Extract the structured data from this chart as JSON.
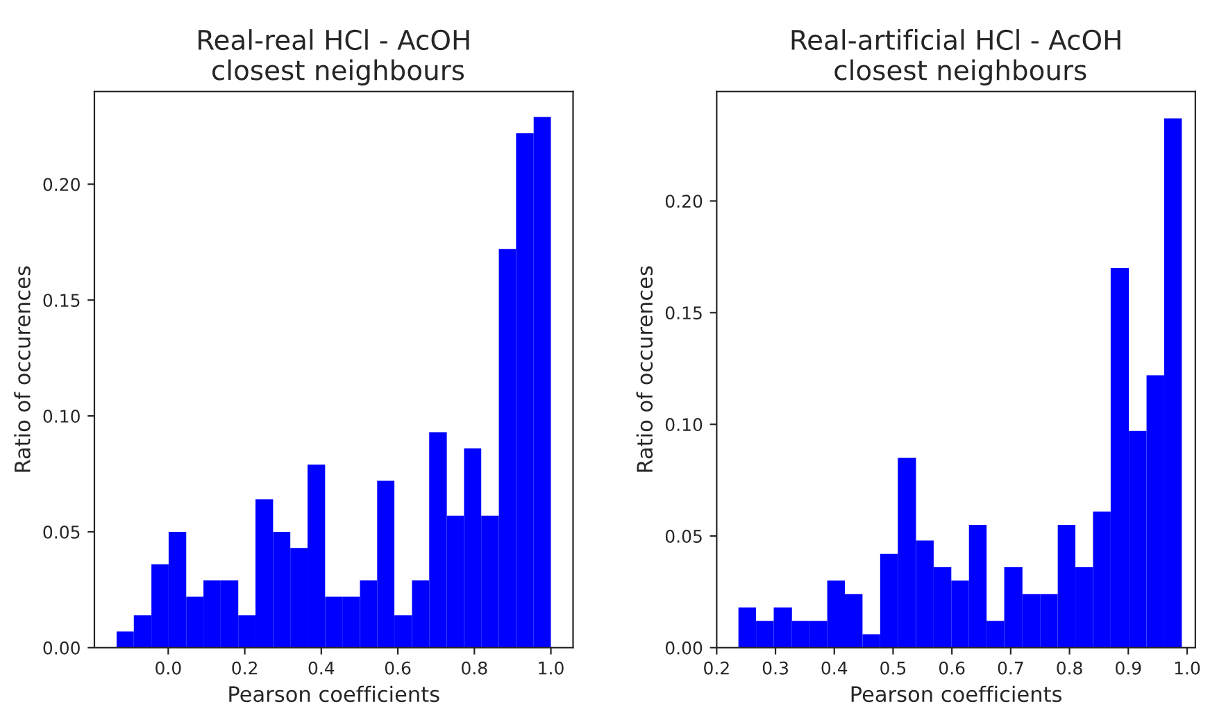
{
  "chart_data": [
    {
      "type": "histogram",
      "title": "Real-real HCl - AcOH\n closest neighbours",
      "xlabel": "Pearson coefficients",
      "ylabel": "Ratio of occurences",
      "color": "#0000ff",
      "bins": [
        -0.135,
        -0.09,
        -0.044,
        0.001,
        0.047,
        0.092,
        0.137,
        0.183,
        0.228,
        0.274,
        0.319,
        0.364,
        0.41,
        0.455,
        0.501,
        0.546,
        0.591,
        0.637,
        0.682,
        0.728,
        0.773,
        0.818,
        0.864,
        0.909,
        0.955,
        1.0
      ],
      "values": [
        0.007,
        0.014,
        0.036,
        0.05,
        0.022,
        0.029,
        0.029,
        0.014,
        0.064,
        0.05,
        0.043,
        0.079,
        0.022,
        0.022,
        0.029,
        0.072,
        0.014,
        0.029,
        0.093,
        0.057,
        0.086,
        0.057,
        0.172,
        0.222,
        0.229
      ],
      "xlim": [
        -0.193,
        1.058
      ],
      "ylim": [
        0,
        0.24
      ],
      "xticks": [
        {
          "value": 0,
          "label": "0.0"
        },
        {
          "value": 0.2,
          "label": "0.2"
        },
        {
          "value": 0.4,
          "label": "0.4"
        },
        {
          "value": 0.6,
          "label": "0.6"
        },
        {
          "value": 0.8,
          "label": "0.8"
        },
        {
          "value": 1,
          "label": "1.0"
        }
      ],
      "yticks": [
        {
          "value": 0,
          "label": "0.00"
        },
        {
          "value": 0.05,
          "label": "0.05"
        },
        {
          "value": 0.1,
          "label": "0.10"
        },
        {
          "value": 0.15,
          "label": "0.15"
        },
        {
          "value": 0.2,
          "label": "0.20"
        }
      ]
    },
    {
      "type": "histogram",
      "title": "Real-artificial HCl - AcOH\n closest neighbours",
      "xlabel": "Pearson coefficients",
      "ylabel": "Ratio of occurences",
      "color": "#0000ff",
      "bins": [
        0.237,
        0.267,
        0.297,
        0.328,
        0.358,
        0.388,
        0.418,
        0.448,
        0.478,
        0.508,
        0.539,
        0.569,
        0.599,
        0.629,
        0.659,
        0.689,
        0.72,
        0.75,
        0.78,
        0.81,
        0.84,
        0.87,
        0.901,
        0.931,
        0.961,
        0.991
      ],
      "values": [
        0.018,
        0.012,
        0.018,
        0.012,
        0.012,
        0.03,
        0.024,
        0.006,
        0.042,
        0.085,
        0.048,
        0.036,
        0.03,
        0.055,
        0.012,
        0.036,
        0.024,
        0.024,
        0.055,
        0.036,
        0.061,
        0.17,
        0.097,
        0.122,
        0.237
      ],
      "xlim": [
        0.2,
        1.014
      ],
      "ylim": [
        0,
        0.249
      ],
      "xticks": [
        {
          "value": 0.2,
          "label": "0.2"
        },
        {
          "value": 0.3,
          "label": "0.3"
        },
        {
          "value": 0.4,
          "label": "0.4"
        },
        {
          "value": 0.5,
          "label": "0.5"
        },
        {
          "value": 0.6,
          "label": "0.6"
        },
        {
          "value": 0.7,
          "label": "0.7"
        },
        {
          "value": 0.8,
          "label": "0.8"
        },
        {
          "value": 0.9,
          "label": "0.9"
        },
        {
          "value": 1,
          "label": "1.0"
        }
      ],
      "yticks": [
        {
          "value": 0,
          "label": "0.00"
        },
        {
          "value": 0.05,
          "label": "0.05"
        },
        {
          "value": 0.1,
          "label": "0.10"
        },
        {
          "value": 0.15,
          "label": "0.15"
        },
        {
          "value": 0.2,
          "label": "0.20"
        }
      ]
    }
  ]
}
